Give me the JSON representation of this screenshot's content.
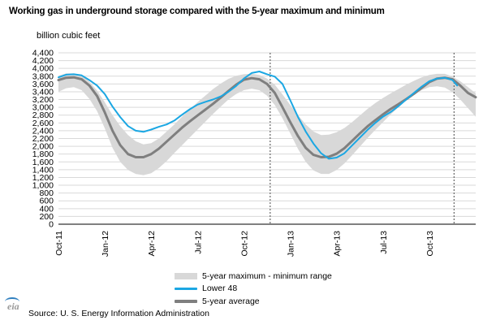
{
  "chart_data": {
    "type": "area",
    "title": "Working gas in underground storage compared with the 5-year maximum and minimum",
    "unit_label": "billion cubic feet",
    "x_ticks": [
      "Oct-11",
      "Jan-12",
      "Apr-12",
      "Jul-12",
      "Oct-12",
      "Jan-13",
      "Apr-13",
      "Jul-13",
      "Oct-13"
    ],
    "x_tick_months": [
      0,
      3,
      6,
      9,
      12,
      15,
      18,
      21,
      24
    ],
    "x_range_months": [
      0,
      27
    ],
    "ylim": [
      0,
      4400
    ],
    "y_ticks": [
      "0",
      "200",
      "400",
      "600",
      "800",
      "1,000",
      "1,200",
      "1,400",
      "1,600",
      "1,800",
      "2,000",
      "2,200",
      "2,400",
      "2,600",
      "2,800",
      "3,000",
      "3,200",
      "3,400",
      "3,600",
      "3,800",
      "4,000",
      "4,200",
      "4,400"
    ],
    "y_tick_values": [
      0,
      200,
      400,
      600,
      800,
      1000,
      1200,
      1400,
      1600,
      1800,
      2000,
      2200,
      2400,
      2600,
      2800,
      3000,
      3200,
      3400,
      3600,
      3800,
      4000,
      4200,
      4400
    ],
    "grid": true,
    "vertical_dashed_lines_months": [
      13.7,
      25.6
    ],
    "legend": [
      "5-year maximum - minimum range",
      "Lower 48",
      "5-year average"
    ],
    "colors": {
      "range": "#d8d8d8",
      "lower48": "#1ba7e3",
      "average": "#7f7f7f",
      "grid": "#d9d9d9"
    },
    "range_max": [
      [
        0,
        3810
      ],
      [
        0.5,
        3870
      ],
      [
        1,
        3870
      ],
      [
        1.5,
        3820
      ],
      [
        2,
        3660
      ],
      [
        2.5,
        3430
      ],
      [
        3,
        3130
      ],
      [
        3.5,
        2800
      ],
      [
        4,
        2520
      ],
      [
        4.5,
        2290
      ],
      [
        5,
        2130
      ],
      [
        5.5,
        2050
      ],
      [
        6,
        2080
      ],
      [
        6.5,
        2200
      ],
      [
        7,
        2380
      ],
      [
        7.5,
        2560
      ],
      [
        8,
        2760
      ],
      [
        8.5,
        2950
      ],
      [
        9,
        3130
      ],
      [
        9.5,
        3300
      ],
      [
        10,
        3470
      ],
      [
        10.5,
        3610
      ],
      [
        11,
        3730
      ],
      [
        11.5,
        3810
      ],
      [
        12,
        3850
      ],
      [
        12.5,
        3860
      ],
      [
        13,
        3830
      ],
      [
        13.5,
        3740
      ],
      [
        14,
        3580
      ],
      [
        14.5,
        3330
      ],
      [
        15,
        3060
      ],
      [
        15.5,
        2800
      ],
      [
        16,
        2560
      ],
      [
        16.5,
        2380
      ],
      [
        17,
        2290
      ],
      [
        17.5,
        2300
      ],
      [
        18,
        2360
      ],
      [
        18.5,
        2470
      ],
      [
        19,
        2620
      ],
      [
        19.5,
        2790
      ],
      [
        20,
        2960
      ],
      [
        20.5,
        3110
      ],
      [
        21,
        3240
      ],
      [
        21.5,
        3360
      ],
      [
        22,
        3470
      ],
      [
        22.5,
        3580
      ],
      [
        23,
        3680
      ],
      [
        23.5,
        3770
      ],
      [
        24,
        3830
      ],
      [
        24.5,
        3860
      ],
      [
        25,
        3860
      ],
      [
        25.5,
        3790
      ],
      [
        26,
        3670
      ],
      [
        26.5,
        3520
      ],
      [
        27,
        3360
      ]
    ],
    "range_min": [
      [
        0,
        3400
      ],
      [
        0.5,
        3490
      ],
      [
        1,
        3520
      ],
      [
        1.5,
        3440
      ],
      [
        2,
        3220
      ],
      [
        2.5,
        2900
      ],
      [
        3,
        2460
      ],
      [
        3.5,
        1960
      ],
      [
        4,
        1600
      ],
      [
        4.5,
        1390
      ],
      [
        5,
        1290
      ],
      [
        5.5,
        1260
      ],
      [
        6,
        1310
      ],
      [
        6.5,
        1440
      ],
      [
        7,
        1620
      ],
      [
        7.5,
        1830
      ],
      [
        8,
        2030
      ],
      [
        8.5,
        2230
      ],
      [
        9,
        2430
      ],
      [
        9.5,
        2630
      ],
      [
        10,
        2830
      ],
      [
        10.5,
        3020
      ],
      [
        11,
        3200
      ],
      [
        11.5,
        3340
      ],
      [
        12,
        3440
      ],
      [
        12.5,
        3480
      ],
      [
        13,
        3440
      ],
      [
        13.5,
        3300
      ],
      [
        14,
        3060
      ],
      [
        14.5,
        2720
      ],
      [
        15,
        2330
      ],
      [
        15.5,
        1930
      ],
      [
        16,
        1600
      ],
      [
        16.5,
        1380
      ],
      [
        17,
        1290
      ],
      [
        17.5,
        1290
      ],
      [
        18,
        1390
      ],
      [
        18.5,
        1560
      ],
      [
        19,
        1770
      ],
      [
        19.5,
        1990
      ],
      [
        20,
        2210
      ],
      [
        20.5,
        2420
      ],
      [
        21,
        2620
      ],
      [
        21.5,
        2820
      ],
      [
        22,
        3000
      ],
      [
        22.5,
        3170
      ],
      [
        23,
        3320
      ],
      [
        23.5,
        3440
      ],
      [
        24,
        3520
      ],
      [
        24.5,
        3540
      ],
      [
        25,
        3510
      ],
      [
        25.5,
        3390
      ],
      [
        26,
        3200
      ],
      [
        26.5,
        2980
      ],
      [
        27,
        2760
      ]
    ],
    "series": [
      {
        "name": "5-year average",
        "points": [
          [
            0,
            3700
          ],
          [
            0.5,
            3760
          ],
          [
            1,
            3770
          ],
          [
            1.5,
            3720
          ],
          [
            2,
            3560
          ],
          [
            2.5,
            3290
          ],
          [
            3,
            2870
          ],
          [
            3.5,
            2400
          ],
          [
            4,
            2030
          ],
          [
            4.5,
            1800
          ],
          [
            5,
            1720
          ],
          [
            5.5,
            1720
          ],
          [
            6,
            1800
          ],
          [
            6.5,
            1940
          ],
          [
            7,
            2120
          ],
          [
            7.5,
            2300
          ],
          [
            8,
            2480
          ],
          [
            8.5,
            2640
          ],
          [
            9,
            2790
          ],
          [
            9.5,
            2940
          ],
          [
            10,
            3090
          ],
          [
            10.5,
            3250
          ],
          [
            11,
            3420
          ],
          [
            11.5,
            3580
          ],
          [
            12,
            3710
          ],
          [
            12.5,
            3750
          ],
          [
            13,
            3720
          ],
          [
            13.5,
            3600
          ],
          [
            14,
            3370
          ],
          [
            14.5,
            3000
          ],
          [
            15,
            2620
          ],
          [
            15.5,
            2260
          ],
          [
            16,
            1960
          ],
          [
            16.5,
            1780
          ],
          [
            17,
            1720
          ],
          [
            17.5,
            1730
          ],
          [
            18,
            1810
          ],
          [
            18.5,
            1950
          ],
          [
            19,
            2140
          ],
          [
            19.5,
            2330
          ],
          [
            20,
            2510
          ],
          [
            20.5,
            2670
          ],
          [
            21,
            2820
          ],
          [
            21.5,
            2960
          ],
          [
            22,
            3080
          ],
          [
            22.5,
            3210
          ],
          [
            23,
            3350
          ],
          [
            23.5,
            3500
          ],
          [
            24,
            3650
          ],
          [
            24.5,
            3740
          ],
          [
            25,
            3760
          ],
          [
            25.5,
            3720
          ],
          [
            26,
            3560
          ],
          [
            26.5,
            3370
          ],
          [
            27,
            3260
          ]
        ]
      },
      {
        "name": "Lower 48",
        "points": [
          [
            0,
            3770
          ],
          [
            0.5,
            3840
          ],
          [
            1,
            3850
          ],
          [
            1.5,
            3820
          ],
          [
            2,
            3700
          ],
          [
            2.5,
            3560
          ],
          [
            3,
            3340
          ],
          [
            3.5,
            3020
          ],
          [
            4,
            2750
          ],
          [
            4.5,
            2520
          ],
          [
            5,
            2400
          ],
          [
            5.5,
            2370
          ],
          [
            6,
            2430
          ],
          [
            6.5,
            2500
          ],
          [
            7,
            2560
          ],
          [
            7.5,
            2660
          ],
          [
            8,
            2810
          ],
          [
            8.5,
            2950
          ],
          [
            9,
            3070
          ],
          [
            9.5,
            3140
          ],
          [
            10,
            3200
          ],
          [
            10.5,
            3280
          ],
          [
            11,
            3400
          ],
          [
            11.5,
            3550
          ],
          [
            12,
            3740
          ],
          [
            12.5,
            3880
          ],
          [
            13,
            3920
          ],
          [
            13.5,
            3850
          ],
          [
            14,
            3790
          ],
          [
            14.5,
            3600
          ],
          [
            15,
            3180
          ],
          [
            15.5,
            2750
          ],
          [
            16,
            2380
          ],
          [
            16.5,
            2070
          ],
          [
            17,
            1820
          ],
          [
            17.5,
            1680
          ],
          [
            18,
            1710
          ],
          [
            18.5,
            1820
          ],
          [
            19,
            2020
          ],
          [
            19.5,
            2220
          ],
          [
            20,
            2420
          ],
          [
            20.5,
            2600
          ],
          [
            21,
            2760
          ],
          [
            21.5,
            2880
          ],
          [
            22,
            3030
          ],
          [
            22.5,
            3200
          ],
          [
            23,
            3370
          ],
          [
            23.5,
            3530
          ],
          [
            24,
            3670
          ],
          [
            24.5,
            3740
          ],
          [
            25,
            3760
          ],
          [
            25.5,
            3700
          ],
          [
            25.8,
            3560
          ]
        ]
      }
    ]
  },
  "source": "Source:  U. S. Energy Information Administration",
  "logo_text": "eia"
}
